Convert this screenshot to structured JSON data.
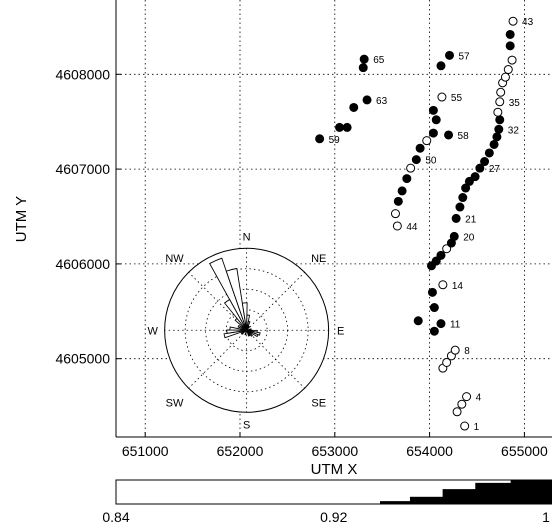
{
  "chart_data": {
    "type": "scatter",
    "title": "",
    "xlabel": "UTM X",
    "ylabel": "UTM Y",
    "xlim": [
      650000,
      655300
    ],
    "ylim": [
      4604100,
      4608800
    ],
    "xticks": [
      651000,
      652000,
      653000,
      654000,
      655000
    ],
    "yticks": [
      4605000,
      4606000,
      4607000,
      4608000
    ],
    "xtick_labels": [
      "651000",
      "652000",
      "653000",
      "654000",
      "655000"
    ],
    "ytick_labels": [
      "4605000",
      "4606000",
      "4607000",
      "4608000"
    ],
    "grid": true,
    "points": [
      {
        "x": 654370,
        "y": 4604290,
        "filled": false,
        "label": "1"
      },
      {
        "x": 654290,
        "y": 4604440,
        "filled": false,
        "label": ""
      },
      {
        "x": 654340,
        "y": 4604520,
        "filled": false,
        "label": ""
      },
      {
        "x": 654390,
        "y": 4604600,
        "filled": false,
        "label": "4"
      },
      {
        "x": 654140,
        "y": 4604900,
        "filled": false,
        "label": ""
      },
      {
        "x": 654180,
        "y": 4604960,
        "filled": false,
        "label": ""
      },
      {
        "x": 654230,
        "y": 4605030,
        "filled": false,
        "label": ""
      },
      {
        "x": 654270,
        "y": 4605090,
        "filled": false,
        "label": "8"
      },
      {
        "x": 654050,
        "y": 4605290,
        "filled": true,
        "label": ""
      },
      {
        "x": 653880,
        "y": 4605400,
        "filled": true,
        "label": ""
      },
      {
        "x": 654120,
        "y": 4605370,
        "filled": true,
        "label": "11"
      },
      {
        "x": 654050,
        "y": 4605540,
        "filled": true,
        "label": ""
      },
      {
        "x": 654030,
        "y": 4605700,
        "filled": true,
        "label": ""
      },
      {
        "x": 654140,
        "y": 4605780,
        "filled": false,
        "label": "14"
      },
      {
        "x": 654020,
        "y": 4605980,
        "filled": true,
        "label": ""
      },
      {
        "x": 654070,
        "y": 4606030,
        "filled": true,
        "label": ""
      },
      {
        "x": 654120,
        "y": 4606090,
        "filled": true,
        "label": ""
      },
      {
        "x": 654180,
        "y": 4606160,
        "filled": false,
        "label": ""
      },
      {
        "x": 654230,
        "y": 4606220,
        "filled": true,
        "label": ""
      },
      {
        "x": 654260,
        "y": 4606290,
        "filled": true,
        "label": "20"
      },
      {
        "x": 654280,
        "y": 4606480,
        "filled": true,
        "label": "21"
      },
      {
        "x": 654320,
        "y": 4606600,
        "filled": true,
        "label": ""
      },
      {
        "x": 654350,
        "y": 4606700,
        "filled": true,
        "label": ""
      },
      {
        "x": 654380,
        "y": 4606800,
        "filled": true,
        "label": ""
      },
      {
        "x": 654420,
        "y": 4606870,
        "filled": true,
        "label": ""
      },
      {
        "x": 654480,
        "y": 4606920,
        "filled": true,
        "label": ""
      },
      {
        "x": 654530,
        "y": 4607010,
        "filled": true,
        "label": "27"
      },
      {
        "x": 654580,
        "y": 4607080,
        "filled": true,
        "label": ""
      },
      {
        "x": 654630,
        "y": 4607170,
        "filled": true,
        "label": ""
      },
      {
        "x": 654680,
        "y": 4607260,
        "filled": true,
        "label": ""
      },
      {
        "x": 654710,
        "y": 4607340,
        "filled": true,
        "label": ""
      },
      {
        "x": 654730,
        "y": 4607420,
        "filled": true,
        "label": "32"
      },
      {
        "x": 654740,
        "y": 4607520,
        "filled": true,
        "label": ""
      },
      {
        "x": 654720,
        "y": 4607600,
        "filled": false,
        "label": ""
      },
      {
        "x": 654740,
        "y": 4607710,
        "filled": false,
        "label": "35"
      },
      {
        "x": 654750,
        "y": 4607810,
        "filled": false,
        "label": ""
      },
      {
        "x": 654770,
        "y": 4607910,
        "filled": false,
        "label": ""
      },
      {
        "x": 654800,
        "y": 4607970,
        "filled": false,
        "label": ""
      },
      {
        "x": 654830,
        "y": 4608050,
        "filled": false,
        "label": ""
      },
      {
        "x": 654870,
        "y": 4608150,
        "filled": false,
        "label": ""
      },
      {
        "x": 654850,
        "y": 4608300,
        "filled": true,
        "label": ""
      },
      {
        "x": 654850,
        "y": 4608420,
        "filled": true,
        "label": ""
      },
      {
        "x": 654880,
        "y": 4608560,
        "filled": false,
        "label": "43"
      },
      {
        "x": 653660,
        "y": 4606400,
        "filled": false,
        "label": "44"
      },
      {
        "x": 653640,
        "y": 4606530,
        "filled": false,
        "label": ""
      },
      {
        "x": 653670,
        "y": 4606660,
        "filled": true,
        "label": ""
      },
      {
        "x": 653710,
        "y": 4606770,
        "filled": true,
        "label": ""
      },
      {
        "x": 653760,
        "y": 4606900,
        "filled": true,
        "label": ""
      },
      {
        "x": 653800,
        "y": 4607010,
        "filled": false,
        "label": ""
      },
      {
        "x": 653860,
        "y": 4607100,
        "filled": true,
        "label": "50"
      },
      {
        "x": 653900,
        "y": 4607220,
        "filled": true,
        "label": ""
      },
      {
        "x": 653970,
        "y": 4607300,
        "filled": false,
        "label": ""
      },
      {
        "x": 654040,
        "y": 4607380,
        "filled": true,
        "label": ""
      },
      {
        "x": 654070,
        "y": 4607520,
        "filled": true,
        "label": ""
      },
      {
        "x": 654040,
        "y": 4607620,
        "filled": true,
        "label": ""
      },
      {
        "x": 654130,
        "y": 4607760,
        "filled": false,
        "label": "55"
      },
      {
        "x": 654120,
        "y": 4608090,
        "filled": true,
        "label": ""
      },
      {
        "x": 654210,
        "y": 4608200,
        "filled": true,
        "label": "57"
      },
      {
        "x": 654200,
        "y": 4607360,
        "filled": true,
        "label": "58"
      },
      {
        "x": 652840,
        "y": 4607320,
        "filled": true,
        "label": "59"
      },
      {
        "x": 653050,
        "y": 4607440,
        "filled": true,
        "label": ""
      },
      {
        "x": 653130,
        "y": 4607440,
        "filled": true,
        "label": ""
      },
      {
        "x": 653200,
        "y": 4607650,
        "filled": true,
        "label": ""
      },
      {
        "x": 653340,
        "y": 4607730,
        "filled": true,
        "label": "63"
      },
      {
        "x": 653300,
        "y": 4608070,
        "filled": true,
        "label": ""
      },
      {
        "x": 653310,
        "y": 4608160,
        "filled": true,
        "label": "65"
      }
    ],
    "polar_inset": {
      "center": [
        652070,
        4605300
      ],
      "directions": [
        "N",
        "NE",
        "E",
        "SE",
        "S",
        "SW",
        "W",
        "NW"
      ],
      "rose_bins": [
        {
          "angle_deg": 336,
          "length": 1.0
        },
        {
          "angle_deg": 346,
          "length": 0.82
        },
        {
          "angle_deg": 356,
          "length": 0.36
        },
        {
          "angle_deg": 6,
          "length": 0.2
        },
        {
          "angle_deg": 16,
          "length": 0.12
        },
        {
          "angle_deg": 36,
          "length": 0.06
        },
        {
          "angle_deg": 76,
          "length": 0.06
        },
        {
          "angle_deg": 96,
          "length": 0.14
        },
        {
          "angle_deg": 106,
          "length": 0.18
        },
        {
          "angle_deg": 116,
          "length": 0.16
        },
        {
          "angle_deg": 136,
          "length": 0.1
        },
        {
          "angle_deg": 156,
          "length": 0.08
        },
        {
          "angle_deg": 196,
          "length": 0.06
        },
        {
          "angle_deg": 236,
          "length": 0.08
        },
        {
          "angle_deg": 256,
          "length": 0.3
        },
        {
          "angle_deg": 266,
          "length": 0.26
        },
        {
          "angle_deg": 276,
          "length": 0.22
        },
        {
          "angle_deg": 296,
          "length": 0.12
        },
        {
          "angle_deg": 316,
          "length": 0.2
        },
        {
          "angle_deg": 326,
          "length": 0.46
        }
      ]
    },
    "colorbar": {
      "range": [
        0.84,
        1.0
      ],
      "tick_labels": [
        "0.84",
        "0.92",
        "1"
      ],
      "tick_values": [
        0.84,
        0.92,
        1.0
      ],
      "steps": [
        {
          "threshold": 0.937,
          "fill": 0.12
        },
        {
          "threshold": 0.948,
          "fill": 0.3
        },
        {
          "threshold": 0.96,
          "fill": 0.62
        },
        {
          "threshold": 0.972,
          "fill": 0.88
        },
        {
          "threshold": 0.985,
          "fill": 1.0
        }
      ]
    }
  }
}
